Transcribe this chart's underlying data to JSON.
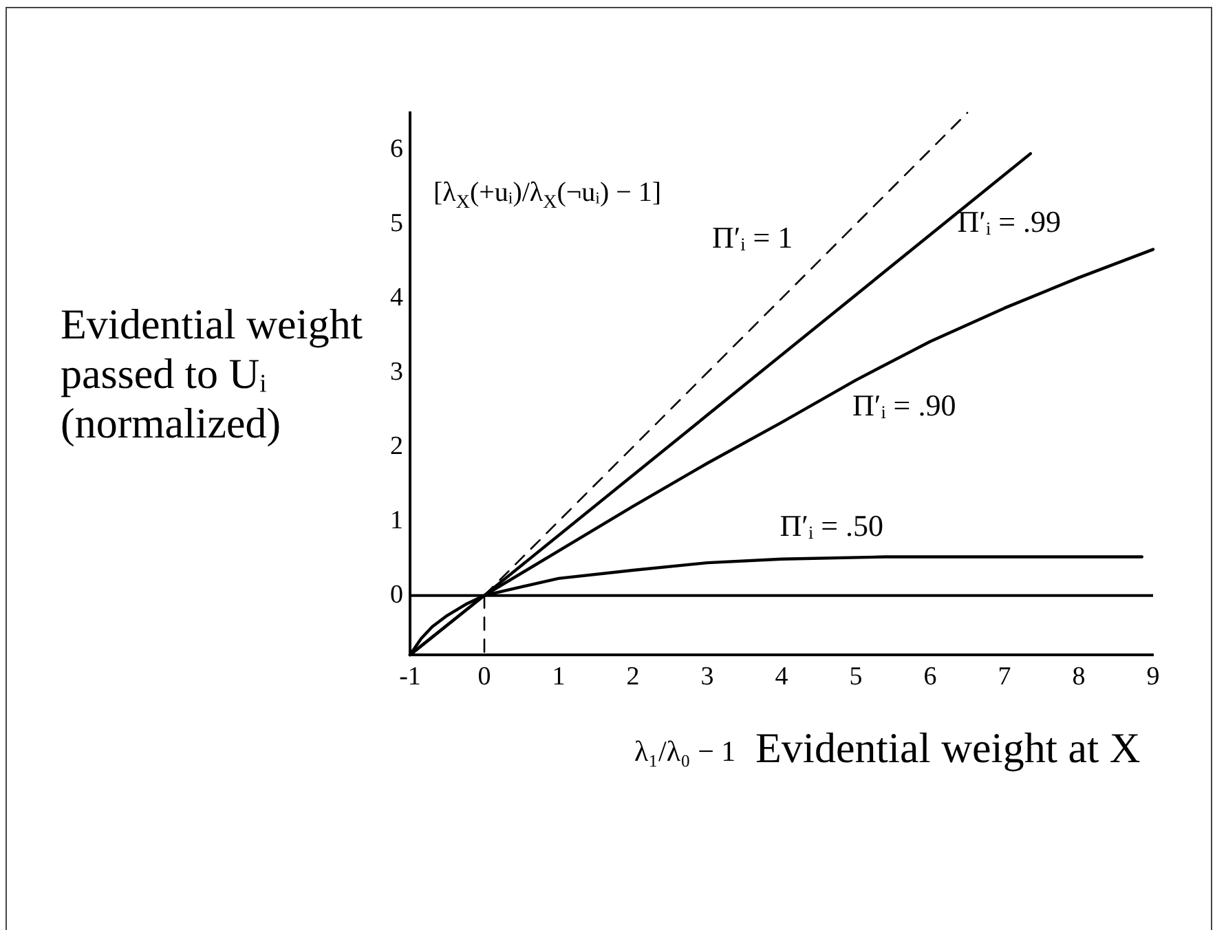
{
  "chart_data": {
    "type": "line",
    "xlabel": "Evidential weight at X",
    "ylabel": "Evidential weight passed to Uᵢ (normalized)",
    "annotations": [
      "λ₁/λ₀ − 1",
      "[λ$_{X}$(+uᵢ)/λ$_{X}$(¬uᵢ) − 1]"
    ],
    "xlim": [
      -1,
      9
    ],
    "xticks": [
      -1,
      0,
      1,
      2,
      3,
      4,
      5,
      6,
      7,
      8,
      9
    ],
    "ylim": [
      -0.8,
      6.5
    ],
    "yticks": [
      0,
      1,
      2,
      3,
      4,
      5,
      6
    ],
    "line_style": "solid",
    "series": [
      {
        "name": "Π′ᵢ = 1",
        "color": "#000000",
        "line_style": "dashed",
        "x": [
          0,
          6.5
        ],
        "values": [
          0,
          6.5
        ]
      },
      {
        "name": "Π′ᵢ = .99",
        "color": "#000000",
        "x": [
          -1,
          0,
          7.35
        ],
        "values": [
          -0.8,
          0,
          5.95
        ]
      },
      {
        "name": "Π′ᵢ = .90",
        "color": "#000000",
        "x": [
          -1,
          0,
          1,
          2,
          3,
          4,
          5,
          6,
          7,
          8,
          9
        ],
        "values": [
          -0.8,
          0,
          0.6,
          1.2,
          1.78,
          2.33,
          2.9,
          3.42,
          3.87,
          4.28,
          4.66
        ]
      },
      {
        "name": "Π′ᵢ = .50",
        "color": "#000000",
        "x": [
          -1,
          -0.85,
          -0.7,
          -0.5,
          -0.25,
          0,
          1,
          2,
          3,
          4,
          5.4,
          8.85
        ],
        "values": [
          -0.8,
          -0.58,
          -0.42,
          -0.27,
          -0.12,
          0,
          0.23,
          0.34,
          0.44,
          0.49,
          0.52,
          0.52
        ]
      },
      {
        "color": "#000000",
        "line_style": "dashed",
        "x": [
          0,
          0
        ],
        "values": [
          0,
          -0.8
        ]
      }
    ],
    "ref_lines": [
      {
        "axis": "y",
        "value": 0,
        "color": "#000000"
      }
    ]
  }
}
